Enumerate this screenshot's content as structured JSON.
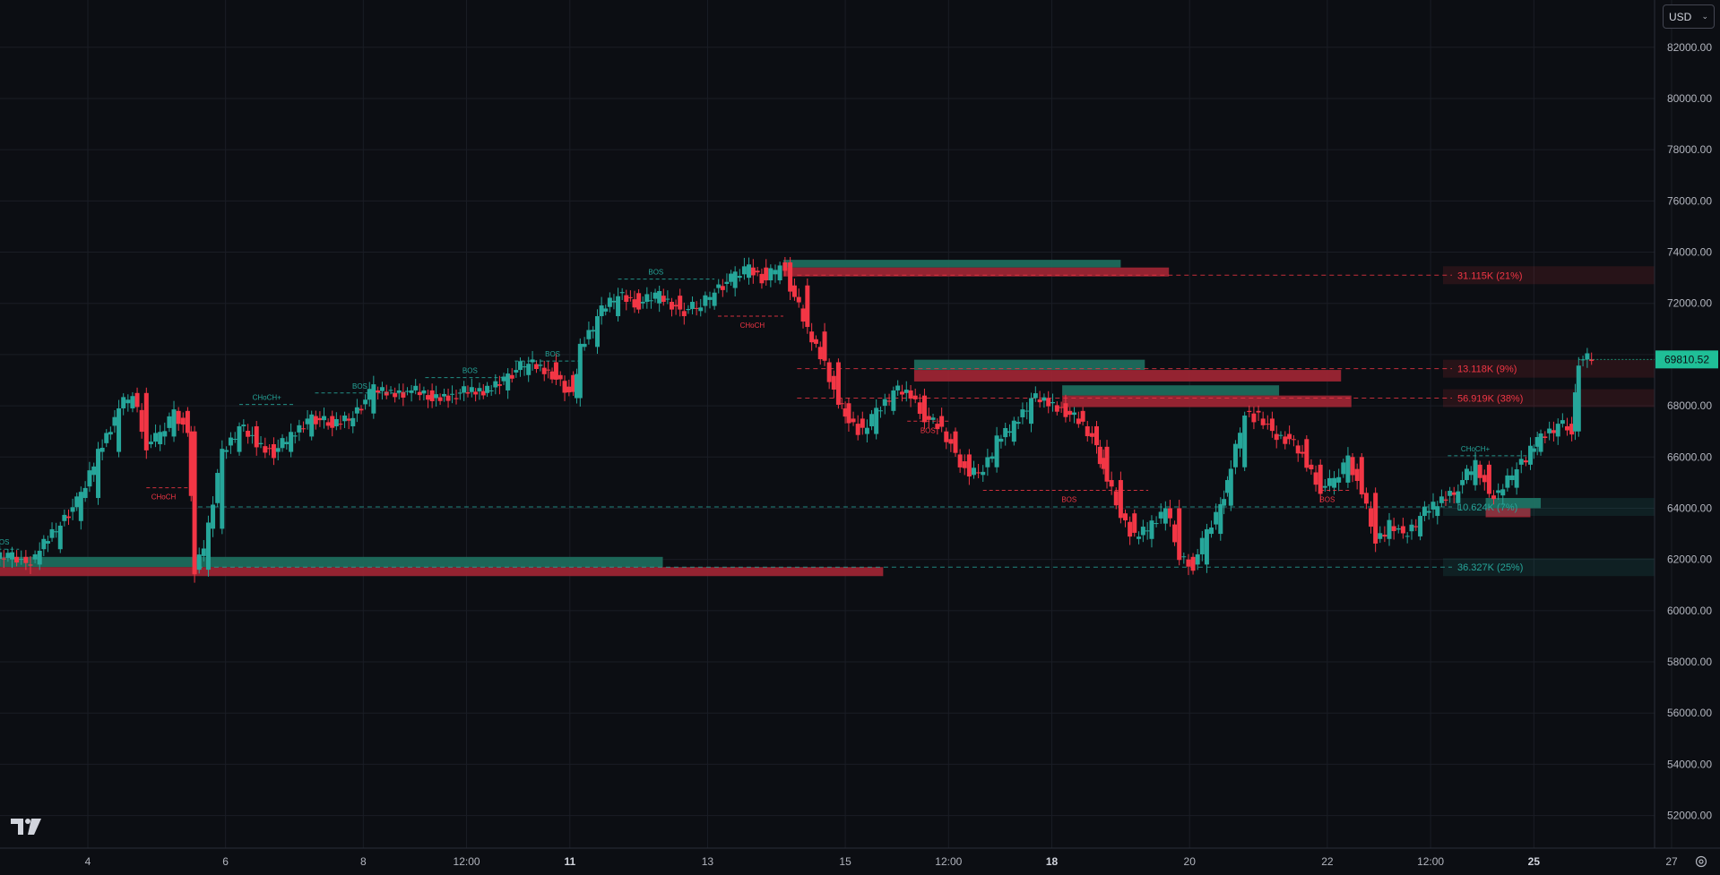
{
  "currency": "USD",
  "icons": {
    "settings": "gear-icon",
    "dropdown": "chevron-down-icon",
    "logo": "tradingview-logo-icon"
  },
  "colors": {
    "background": "#0c0e13",
    "up": "#26a69a",
    "down": "#f23645",
    "grid": "#1a1d25",
    "axis_text": "#b2b5be",
    "price_tag": "#1fbf97"
  },
  "chart_data": {
    "type": "candlestick",
    "y_range": [
      51000,
      84000
    ],
    "price_ticks": [
      82000,
      80000,
      78000,
      76000,
      74000,
      72000,
      70000,
      68000,
      66000,
      64000,
      62000,
      60000,
      58000,
      56000,
      54000,
      52000
    ],
    "price_tick_labels": [
      "82000.00",
      "80000.00",
      "78000.00",
      "76000.00",
      "74000.00",
      "72000.00",
      "70000.00",
      "68000.00",
      "66000.00",
      "64000.00",
      "62000.00",
      "60000.00",
      "58000.00",
      "56000.00",
      "54000.00",
      "52000.00"
    ],
    "time_labels": [
      {
        "label": "4",
        "day": 4.0,
        "bold": false
      },
      {
        "label": "6",
        "day": 6.0,
        "bold": false
      },
      {
        "label": "8",
        "day": 8.0,
        "bold": false
      },
      {
        "label": "12:00",
        "day": 9.5,
        "bold": false
      },
      {
        "label": "11",
        "day": 11.0,
        "bold": true
      },
      {
        "label": "13",
        "day": 13.0,
        "bold": false
      },
      {
        "label": "15",
        "day": 15.0,
        "bold": false
      },
      {
        "label": "12:00",
        "day": 16.5,
        "bold": false
      },
      {
        "label": "18",
        "day": 18.0,
        "bold": true
      },
      {
        "label": "20",
        "day": 20.0,
        "bold": false
      },
      {
        "label": "22",
        "day": 22.0,
        "bold": false
      },
      {
        "label": "12:00",
        "day": 23.5,
        "bold": false
      },
      {
        "label": "25",
        "day": 25.0,
        "bold": true
      },
      {
        "label": "27",
        "day": 27.0,
        "bold": false
      }
    ],
    "last_price": 69810.52,
    "last_price_label": "69810.52",
    "closes": [
      [
        2.6,
        62000
      ],
      [
        2.9,
        62100
      ],
      [
        3.1,
        61800
      ],
      [
        3.3,
        62400
      ],
      [
        3.6,
        63500
      ],
      [
        3.9,
        64400
      ],
      [
        4.15,
        66200
      ],
      [
        4.45,
        67900
      ],
      [
        4.65,
        68500
      ],
      [
        4.85,
        66500
      ],
      [
        5.05,
        66800
      ],
      [
        5.25,
        67800
      ],
      [
        5.45,
        67000
      ],
      [
        5.55,
        61600
      ],
      [
        5.75,
        63200
      ],
      [
        5.95,
        66200
      ],
      [
        6.2,
        67200
      ],
      [
        6.45,
        66500
      ],
      [
        6.7,
        66200
      ],
      [
        6.95,
        66800
      ],
      [
        7.25,
        67600
      ],
      [
        7.55,
        67200
      ],
      [
        7.85,
        67700
      ],
      [
        8.15,
        68600
      ],
      [
        8.4,
        68500
      ],
      [
        8.7,
        68600
      ],
      [
        9.0,
        68300
      ],
      [
        9.35,
        68500
      ],
      [
        9.8,
        68600
      ],
      [
        10.1,
        69200
      ],
      [
        10.4,
        69700
      ],
      [
        10.8,
        69200
      ],
      [
        11.05,
        68300
      ],
      [
        11.15,
        70300
      ],
      [
        11.4,
        71500
      ],
      [
        11.7,
        72400
      ],
      [
        12.0,
        72000
      ],
      [
        12.3,
        72300
      ],
      [
        12.6,
        71700
      ],
      [
        12.9,
        71900
      ],
      [
        13.1,
        72600
      ],
      [
        13.4,
        73000
      ],
      [
        13.6,
        73400
      ],
      [
        13.85,
        72900
      ],
      [
        14.05,
        73600
      ],
      [
        14.2,
        72700
      ],
      [
        14.45,
        70900
      ],
      [
        14.7,
        69700
      ],
      [
        14.9,
        68100
      ],
      [
        15.05,
        67500
      ],
      [
        15.25,
        66900
      ],
      [
        15.45,
        67800
      ],
      [
        15.7,
        68600
      ],
      [
        15.95,
        68400
      ],
      [
        16.15,
        67600
      ],
      [
        16.4,
        67000
      ],
      [
        16.6,
        66100
      ],
      [
        16.8,
        65300
      ],
      [
        17.0,
        65600
      ],
      [
        17.2,
        66600
      ],
      [
        17.45,
        67300
      ],
      [
        17.7,
        68300
      ],
      [
        17.95,
        68100
      ],
      [
        18.2,
        67800
      ],
      [
        18.45,
        67200
      ],
      [
        18.65,
        66400
      ],
      [
        18.8,
        65100
      ],
      [
        19.0,
        63800
      ],
      [
        19.2,
        62800
      ],
      [
        19.45,
        63400
      ],
      [
        19.65,
        64000
      ],
      [
        19.85,
        62100
      ],
      [
        20.05,
        61800
      ],
      [
        20.25,
        63000
      ],
      [
        20.45,
        64100
      ],
      [
        20.6,
        65600
      ],
      [
        20.8,
        67800
      ],
      [
        21.0,
        67500
      ],
      [
        21.2,
        66900
      ],
      [
        21.45,
        66700
      ],
      [
        21.7,
        65700
      ],
      [
        21.9,
        64800
      ],
      [
        22.1,
        65000
      ],
      [
        22.3,
        66000
      ],
      [
        22.5,
        64600
      ],
      [
        22.7,
        62800
      ],
      [
        22.9,
        63300
      ],
      [
        23.1,
        62900
      ],
      [
        23.35,
        63700
      ],
      [
        23.6,
        64200
      ],
      [
        23.9,
        64900
      ],
      [
        24.15,
        65700
      ],
      [
        24.35,
        64500
      ],
      [
        24.55,
        64800
      ],
      [
        24.75,
        65700
      ],
      [
        24.95,
        66200
      ],
      [
        25.1,
        66800
      ],
      [
        25.35,
        67300
      ],
      [
        25.55,
        67000
      ],
      [
        25.65,
        69810
      ]
    ],
    "zones": [
      {
        "side": "supply",
        "day_start": 14.1,
        "day_end": 19.0,
        "top": 73700,
        "bottom": 73400,
        "tone": "green"
      },
      {
        "side": "supply",
        "day_start": 14.1,
        "day_end": 19.7,
        "top": 73400,
        "bottom": 73050,
        "tone": "red"
      },
      {
        "side": "supply",
        "day_start": 16.0,
        "day_end": 19.35,
        "top": 69800,
        "bottom": 69400,
        "tone": "green"
      },
      {
        "side": "supply",
        "day_start": 16.0,
        "day_end": 22.2,
        "top": 69400,
        "bottom": 68950,
        "tone": "red"
      },
      {
        "side": "supply",
        "day_start": 18.15,
        "day_end": 21.3,
        "top": 68800,
        "bottom": 68400,
        "tone": "green"
      },
      {
        "side": "supply",
        "day_start": 18.15,
        "day_end": 22.35,
        "top": 68400,
        "bottom": 67950,
        "tone": "red"
      },
      {
        "side": "demand",
        "day_start": 2.55,
        "day_end": 12.35,
        "top": 62100,
        "bottom": 61700,
        "tone": "green"
      },
      {
        "side": "demand",
        "day_start": 2.55,
        "day_end": 15.55,
        "top": 61700,
        "bottom": 61350,
        "tone": "red"
      },
      {
        "side": "demand",
        "day_start": 24.3,
        "day_end": 25.1,
        "top": 64400,
        "bottom": 64000,
        "tone": "green"
      },
      {
        "side": "demand",
        "day_start": 24.3,
        "day_end": 24.95,
        "top": 64000,
        "bottom": 63650,
        "tone": "red"
      }
    ],
    "liquidity_levels": [
      {
        "price": 73100,
        "label": "31.115K (21%)",
        "side": "supply"
      },
      {
        "price": 69450,
        "label": "13.118K (9%)",
        "side": "supply"
      },
      {
        "price": 68300,
        "label": "56.919K (38%)",
        "side": "supply"
      },
      {
        "price": 64050,
        "label": "10.624K (7%)",
        "side": "demand"
      },
      {
        "price": 61700,
        "label": "36.327K (25%)",
        "side": "demand"
      }
    ],
    "structure_labels": [
      {
        "text": "BOS",
        "day": 2.75,
        "price": 62400,
        "side": "bull",
        "line_from": 2.6,
        "line_to": 3.0
      },
      {
        "text": "CHoCH",
        "day": 5.1,
        "price": 64800,
        "side": "bear",
        "line_from": 4.85,
        "line_to": 5.55
      },
      {
        "text": "CHoCH+",
        "day": 6.6,
        "price": 68050,
        "side": "bull",
        "line_from": 6.2,
        "line_to": 7.0
      },
      {
        "text": "BOS",
        "day": 7.95,
        "price": 68500,
        "side": "bull",
        "line_from": 7.3,
        "line_to": 8.6
      },
      {
        "text": "BOS",
        "day": 9.55,
        "price": 69100,
        "side": "bull",
        "line_from": 8.9,
        "line_to": 10.1
      },
      {
        "text": "BOS",
        "day": 10.75,
        "price": 69750,
        "side": "bull",
        "line_from": 10.2,
        "line_to": 11.2
      },
      {
        "text": "BOS",
        "day": 12.25,
        "price": 72950,
        "side": "bull",
        "line_from": 11.7,
        "line_to": 13.1
      },
      {
        "text": "CHoCH",
        "day": 13.65,
        "price": 71500,
        "side": "bear",
        "line_from": 13.15,
        "line_to": 14.1
      },
      {
        "text": "BOS",
        "day": 16.2,
        "price": 67400,
        "side": "bear",
        "line_from": 15.9,
        "line_to": 16.5
      },
      {
        "text": "BOS",
        "day": 18.25,
        "price": 64700,
        "side": "bear",
        "line_from": 17.0,
        "line_to": 19.4
      },
      {
        "text": "BOS",
        "day": 22.0,
        "price": 64700,
        "side": "bear",
        "line_from": 21.9,
        "line_to": 22.35
      },
      {
        "text": "CHoCH+",
        "day": 24.15,
        "price": 66050,
        "side": "bull",
        "line_from": 23.75,
        "line_to": 24.9
      }
    ]
  }
}
